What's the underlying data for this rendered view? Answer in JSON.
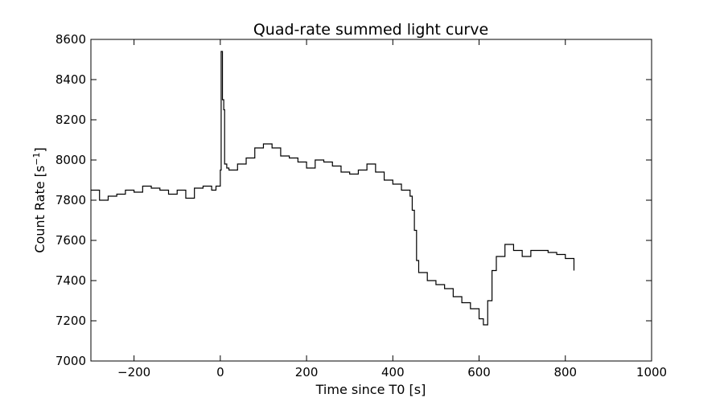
{
  "chart_data": {
    "type": "line",
    "title": "Quad-rate summed light curve",
    "xlabel": "Time since T0 [s]",
    "ylabel": {
      "text": "Count Rate [s",
      "superscript": "−1",
      "suffix": "]"
    },
    "xlim": [
      -300,
      1000
    ],
    "ylim": [
      7000,
      8600
    ],
    "xticks": [
      -200,
      0,
      200,
      400,
      600,
      800,
      1000
    ],
    "yticks": [
      7000,
      7200,
      7400,
      7600,
      7800,
      8000,
      8200,
      8400,
      8600
    ],
    "xtick_labels": [
      "−200",
      "0",
      "200",
      "400",
      "600",
      "800",
      "1000"
    ],
    "ytick_labels": [
      "7000",
      "7200",
      "7400",
      "7600",
      "7800",
      "8000",
      "8200",
      "8400",
      "8600"
    ],
    "grid": false,
    "line_color": "#000000",
    "series": [
      {
        "x": [
          -300,
          -280,
          -260,
          -240,
          -220,
          -200,
          -180,
          -160,
          -140,
          -120,
          -100,
          -80,
          -60,
          -40,
          -20,
          -10,
          0,
          2,
          5,
          8,
          10,
          15,
          20,
          40,
          60,
          80,
          100,
          120,
          140,
          160,
          180,
          200,
          220,
          240,
          260,
          280,
          300,
          320,
          340,
          360,
          380,
          400,
          420,
          440,
          445,
          450,
          455,
          460,
          480,
          500,
          520,
          540,
          560,
          580,
          600,
          610,
          620,
          630,
          640,
          660,
          680,
          700,
          720,
          740,
          760,
          780,
          800,
          820
        ],
        "y": [
          7850,
          7800,
          7820,
          7830,
          7850,
          7840,
          7870,
          7860,
          7850,
          7830,
          7850,
          7810,
          7860,
          7870,
          7850,
          7870,
          7950,
          8540,
          8300,
          8250,
          7980,
          7960,
          7950,
          7980,
          8010,
          8060,
          8080,
          8060,
          8020,
          8010,
          7990,
          7960,
          8000,
          7990,
          7970,
          7940,
          7930,
          7950,
          7980,
          7940,
          7900,
          7880,
          7850,
          7820,
          7750,
          7650,
          7500,
          7440,
          7400,
          7380,
          7360,
          7320,
          7290,
          7260,
          7210,
          7180,
          7300,
          7450,
          7520,
          7580,
          7550,
          7520,
          7550,
          7550,
          7540,
          7530,
          7510,
          7450
        ]
      }
    ]
  }
}
